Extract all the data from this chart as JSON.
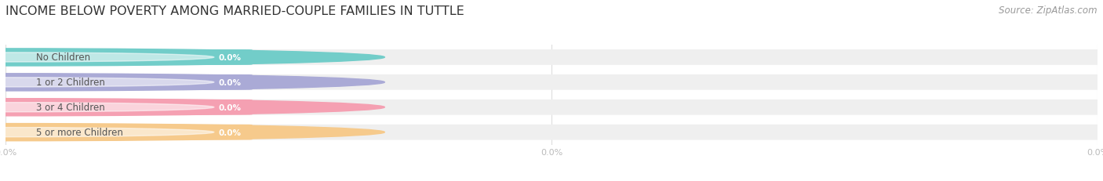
{
  "title": "INCOME BELOW POVERTY AMONG MARRIED-COUPLE FAMILIES IN TUTTLE",
  "source": "Source: ZipAtlas.com",
  "categories": [
    "No Children",
    "1 or 2 Children",
    "3 or 4 Children",
    "5 or more Children"
  ],
  "values": [
    0.0,
    0.0,
    0.0,
    0.0
  ],
  "bar_colors": [
    "#72cdc9",
    "#aaaad6",
    "#f5a0b2",
    "#f6ca8c"
  ],
  "bar_bg_color": "#efefef",
  "label_color": "#555555",
  "value_label_color": "#ffffff",
  "tick_label_color": "#bbbbbb",
  "background_color": "#ffffff",
  "title_fontsize": 11.5,
  "source_fontsize": 8.5,
  "figsize": [
    14.06,
    2.32
  ]
}
